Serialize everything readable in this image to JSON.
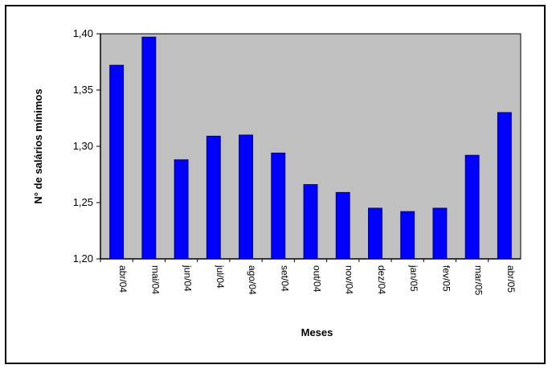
{
  "chart_data": {
    "type": "bar",
    "title": "",
    "xlabel": "Meses",
    "ylabel": "N° de salários mínimos",
    "categories": [
      "abr/04",
      "mai/04",
      "jun/04",
      "jul/04",
      "ago/04",
      "set/04",
      "out/04",
      "nov/04",
      "dez/04",
      "jan/05",
      "fev/05",
      "mar/05",
      "abr/05"
    ],
    "values": [
      1.372,
      1.397,
      1.288,
      1.309,
      1.31,
      1.294,
      1.266,
      1.259,
      1.245,
      1.242,
      1.245,
      1.292,
      1.33
    ],
    "ylim": [
      1.2,
      1.4
    ],
    "yticks": [
      1.2,
      1.25,
      1.3,
      1.35,
      1.4
    ],
    "ytick_labels": [
      "1,20",
      "1,25",
      "1,30",
      "1,35",
      "1,40"
    ],
    "grid": false,
    "legend": "none",
    "colors": {
      "bar_fill": "#0000ff",
      "bar_stroke": "#000080",
      "plot_background": "#c0c0c0",
      "axis": "#000000"
    }
  }
}
